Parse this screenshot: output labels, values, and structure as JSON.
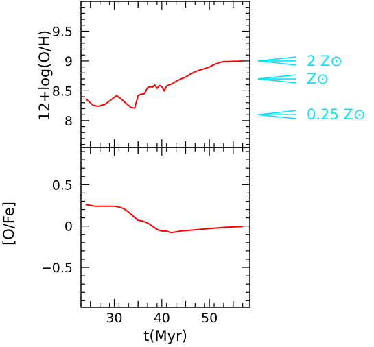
{
  "chart_data": [
    {
      "type": "line",
      "panel": "top",
      "title": "",
      "xlabel": "",
      "ylabel": "12+log(O/H)",
      "xlim": [
        23,
        58.5
      ],
      "ylim": [
        7.55,
        10.0
      ],
      "yticks": [
        8,
        8.5,
        9,
        9.5
      ],
      "ytick_labels": [
        "8",
        "8.5",
        "9",
        "9.5"
      ],
      "grid": false,
      "series_color": "#ff0000",
      "series": [
        {
          "x": [
            24,
            25.5,
            26.5,
            28,
            29.5,
            30.5,
            31.5,
            32.5,
            33.5,
            34.3,
            35,
            35.5,
            36.3,
            37,
            37.5,
            38,
            38.5,
            39,
            39.5,
            40,
            40.5,
            41,
            41.5,
            42,
            43,
            44,
            45,
            46,
            47,
            48,
            49,
            50,
            51,
            52,
            53,
            54,
            55,
            56,
            57
          ],
          "y": [
            8.37,
            8.26,
            8.24,
            8.27,
            8.36,
            8.42,
            8.36,
            8.29,
            8.22,
            8.21,
            8.42,
            8.44,
            8.45,
            8.55,
            8.57,
            8.56,
            8.6,
            8.54,
            8.59,
            8.57,
            8.5,
            8.58,
            8.6,
            8.61,
            8.66,
            8.7,
            8.73,
            8.78,
            8.82,
            8.85,
            8.87,
            8.9,
            8.94,
            8.97,
            8.99,
            8.99,
            8.995,
            8.995,
            9.0
          ]
        }
      ],
      "annotations": [
        {
          "text": "2 Z⊙",
          "y": 9.0
        },
        {
          "text": "Z⊙",
          "y": 8.7
        },
        {
          "text": "0.25 Z⊙",
          "y": 8.1
        }
      ],
      "annotation_color": "#00e5ff"
    },
    {
      "type": "line",
      "panel": "bottom",
      "title": "",
      "xlabel": "t(Myr)",
      "ylabel": "[O/Fe]",
      "xlim": [
        23,
        58.5
      ],
      "ylim": [
        -0.98,
        0.95
      ],
      "xticks": [
        30,
        40,
        50
      ],
      "xtick_labels": [
        "30",
        "40",
        "50"
      ],
      "yticks": [
        -0.5,
        0,
        0.5
      ],
      "ytick_labels": [
        "−0.5",
        "0",
        "0.5"
      ],
      "grid": false,
      "series_color": "#ff0000",
      "series": [
        {
          "x": [
            24,
            25,
            26,
            27,
            28,
            29,
            30,
            31,
            32,
            33,
            34,
            35,
            36,
            37,
            38,
            39,
            40,
            41,
            42,
            43,
            44,
            45,
            47,
            49,
            51,
            53,
            55,
            57
          ],
          "y": [
            0.26,
            0.25,
            0.24,
            0.24,
            0.24,
            0.24,
            0.24,
            0.23,
            0.21,
            0.17,
            0.12,
            0.07,
            0.06,
            0.04,
            0.0,
            -0.04,
            -0.06,
            -0.06,
            -0.08,
            -0.07,
            -0.06,
            -0.055,
            -0.045,
            -0.035,
            -0.025,
            -0.015,
            -0.01,
            -0.005
          ]
        }
      ]
    }
  ]
}
